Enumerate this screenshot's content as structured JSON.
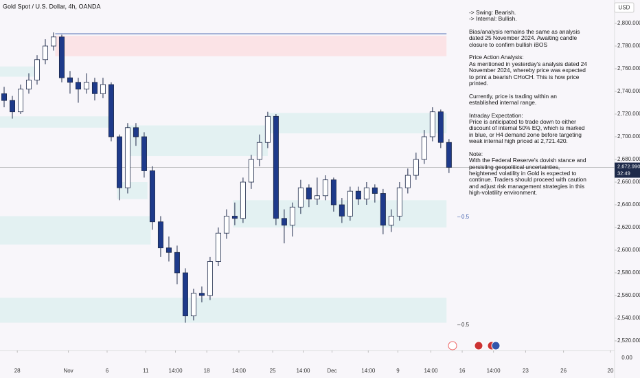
{
  "chart_data": {
    "type": "candlestick",
    "title": "Gold Spot / U.S. Dollar, 4h, OANDA",
    "currency": "USD",
    "open": [
      2738,
      2732,
      2722,
      2742,
      2750,
      2768,
      2780,
      2788,
      2752,
      2748,
      2742,
      2748,
      2738,
      2746,
      2700,
      2655,
      2708,
      2700,
      2670,
      2625,
      2602,
      2598,
      2580,
      2542,
      2562,
      2560,
      2590,
      2615,
      2630,
      2628,
      2660,
      2680,
      2695,
      2718,
      2628,
      2622,
      2638,
      2655,
      2645,
      2648,
      2662,
      2640,
      2630,
      2652,
      2645,
      2655,
      2650,
      2622,
      2630,
      2655,
      2666,
      2680,
      2700,
      2722,
      2695
    ],
    "high": [
      2744,
      2736,
      2746,
      2756,
      2772,
      2786,
      2792,
      2790,
      2758,
      2752,
      2756,
      2752,
      2752,
      2748,
      2702,
      2712,
      2712,
      2704,
      2674,
      2630,
      2612,
      2604,
      2584,
      2566,
      2568,
      2594,
      2620,
      2636,
      2642,
      2664,
      2684,
      2702,
      2722,
      2720,
      2636,
      2642,
      2662,
      2658,
      2664,
      2666,
      2664,
      2646,
      2656,
      2656,
      2660,
      2658,
      2654,
      2636,
      2660,
      2672,
      2686,
      2706,
      2726,
      2724,
      2698
    ],
    "low": [
      2726,
      2716,
      2720,
      2738,
      2746,
      2764,
      2776,
      2748,
      2738,
      2730,
      2738,
      2732,
      2734,
      2696,
      2644,
      2650,
      2692,
      2664,
      2618,
      2594,
      2590,
      2570,
      2536,
      2538,
      2554,
      2556,
      2586,
      2610,
      2622,
      2624,
      2654,
      2674,
      2690,
      2622,
      2606,
      2612,
      2632,
      2638,
      2640,
      2644,
      2634,
      2624,
      2626,
      2640,
      2640,
      2642,
      2614,
      2616,
      2626,
      2650,
      2662,
      2676,
      2696,
      2690,
      2668
    ],
    "close": [
      2732,
      2722,
      2742,
      2750,
      2768,
      2780,
      2788,
      2752,
      2748,
      2742,
      2748,
      2738,
      2746,
      2700,
      2655,
      2708,
      2700,
      2670,
      2625,
      2602,
      2598,
      2580,
      2542,
      2562,
      2560,
      2590,
      2615,
      2630,
      2628,
      2660,
      2680,
      2695,
      2718,
      2628,
      2622,
      2638,
      2655,
      2645,
      2648,
      2662,
      2640,
      2630,
      2652,
      2645,
      2655,
      2650,
      2622,
      2630,
      2655,
      2666,
      2680,
      2700,
      2722,
      2695,
      2673
    ],
    "up_color": "#ffffff",
    "down_color": "#1e3a8a",
    "outline_color": "#1e2a4a",
    "xlim": [
      0,
      74.6
    ],
    "xticks": [
      {
        "value": 2.1,
        "label": "28"
      },
      {
        "value": 8.3,
        "label": "Nov"
      },
      {
        "value": 13,
        "label": "6"
      },
      {
        "value": 17.7,
        "label": "11"
      },
      {
        "value": 21.3,
        "label": "14:00"
      },
      {
        "value": 25.1,
        "label": "18"
      },
      {
        "value": 29,
        "label": "14:00"
      },
      {
        "value": 33.1,
        "label": "25"
      },
      {
        "value": 36.8,
        "label": "14:00"
      },
      {
        "value": 40.3,
        "label": "Dec"
      },
      {
        "value": 44.7,
        "label": "14:00"
      },
      {
        "value": 48.3,
        "label": "9"
      },
      {
        "value": 52.3,
        "label": "14:00"
      },
      {
        "value": 56.1,
        "label": "16"
      },
      {
        "value": 59.9,
        "label": "14:00"
      },
      {
        "value": 63.8,
        "label": "23"
      },
      {
        "value": 68.4,
        "label": "26"
      },
      {
        "value": 74.1,
        "label": "20"
      }
    ],
    "ylim": [
      2511.5,
      2820.6
    ],
    "yticks": [
      {
        "value": 2520,
        "label": "2,520.000"
      },
      {
        "value": 2540,
        "label": "2,540.000"
      },
      {
        "value": 2560,
        "label": "2,560.000"
      },
      {
        "value": 2580,
        "label": "2,580.000"
      },
      {
        "value": 2600,
        "label": "2,600.000"
      },
      {
        "value": 2620,
        "label": "2,620.000"
      },
      {
        "value": 2640,
        "label": "2,640.000"
      },
      {
        "value": 2660,
        "label": "2,660.000"
      },
      {
        "value": 2680,
        "label": "2,680.000"
      },
      {
        "value": 2700,
        "label": "2,700.000"
      },
      {
        "value": 2720,
        "label": "2,720.000"
      },
      {
        "value": 2740,
        "label": "2,740.000"
      },
      {
        "value": 2760,
        "label": "2,760.000"
      },
      {
        "value": 2780,
        "label": "2,780.000"
      },
      {
        "value": 2800,
        "label": "2,800.000"
      }
    ],
    "secondary_scale_label": "0.00",
    "last_price": {
      "value": 2672.99,
      "label": "2,672.990"
    },
    "countdown": "32:49",
    "zones": [
      {
        "x": [
          6.7,
          54.2
        ],
        "y": [
          2771,
          2789
        ],
        "color": "#fbe3e6"
      },
      {
        "x": [
          0,
          4.2
        ],
        "y": [
          2753,
          2762
        ],
        "color": "#e3f1f2"
      },
      {
        "x": [
          0,
          13.3
        ],
        "y": [
          2708,
          2718
        ],
        "color": "#e3f1f2"
      },
      {
        "x": [
          15.4,
          32.5
        ],
        "y": [
          2683,
          2710
        ],
        "color": "#e3f1f2"
      },
      {
        "x": [
          32.5,
          54.2
        ],
        "y": [
          2703,
          2721
        ],
        "color": "#e3f1f2"
      },
      {
        "x": [
          14.2,
          17.9
        ],
        "y": [
          2645,
          2660
        ],
        "color": "#e3f1f2"
      },
      {
        "x": [
          28.3,
          54.2
        ],
        "y": [
          2620,
          2644
        ],
        "color": "#e3f1f2"
      },
      {
        "x": [
          0,
          18.3
        ],
        "y": [
          2605,
          2630
        ],
        "color": "#e3f1f2"
      },
      {
        "x": [
          0,
          54.2
        ],
        "y": [
          2536,
          2558
        ],
        "color": "#e3f1f2"
      }
    ],
    "levels": [
      {
        "x": [
          6.7,
          54.2
        ],
        "value": 2790.8,
        "color": "#3b5bab"
      }
    ],
    "fib_label": "0.5",
    "note": [
      [
        "-> Swing:  Bearish.",
        "-> Internal:  Bullish."
      ],
      [
        "Bias/analysis remains the same as analysis",
        "dated 25 November 2024.  Awaiting candle",
        "closure to confirm bullish iBOS"
      ],
      [
        "Price Action Analysis:",
        "As mentioned in yesterday's analysis dated 24",
        "November 2024, whereby price was expected",
        "to print a bearish CHoCH.  This is how price",
        "printed."
      ],
      [
        "Currently, price is trading within an",
        "established internal range."
      ],
      [
        "Intraday Expectation:",
        "Price is anticipated to trade down to either",
        "discount of internal 50% EQ, which is marked",
        "in blue, or H4 demand zone before targeting",
        "weak internal high priced at 2,721.420."
      ],
      [
        "Note:",
        "With the Federal Reserve's dovish stance and",
        "persisting geopolitical uncertainties,",
        "heightened volatility in Gold is expected to",
        "continue. Traders should proceed with caution",
        "and adjust risk management strategies in this",
        "high-volatility environment."
      ]
    ]
  }
}
